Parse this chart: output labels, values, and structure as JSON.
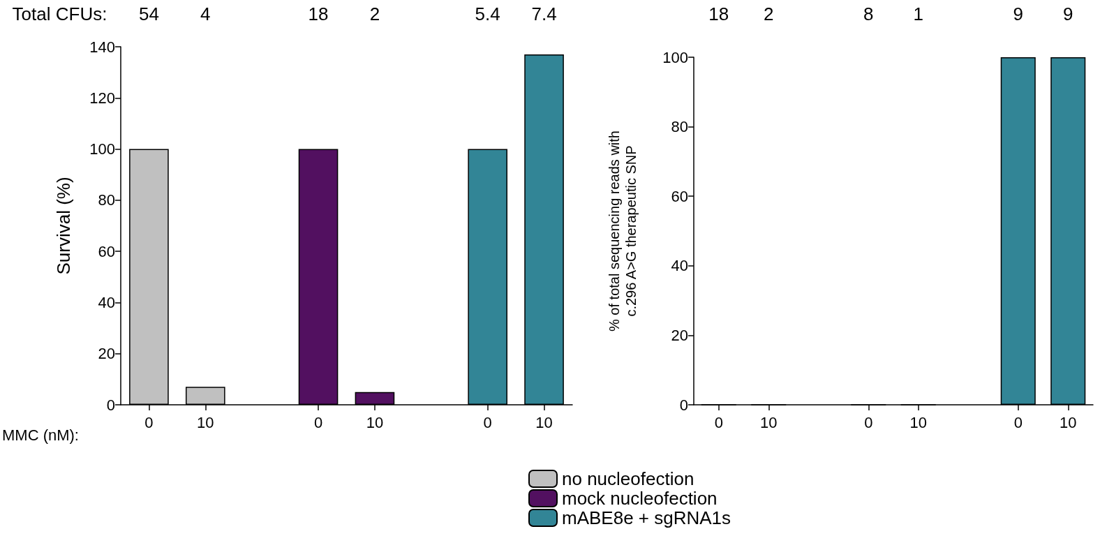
{
  "chart_data": [
    {
      "type": "bar",
      "ylabel": "Survival (%)",
      "xlabel": "MMC (nM):",
      "categories": [
        "0",
        "10",
        null,
        "0",
        "10",
        null,
        "0",
        "10"
      ],
      "series": [
        {
          "name": "no nucleofection",
          "color": "#c0c0c0",
          "values": [
            100,
            7,
            null,
            null,
            null,
            null,
            null,
            null
          ]
        },
        {
          "name": "mock nucleofection",
          "color": "#521060",
          "values": [
            null,
            null,
            null,
            100,
            5,
            null,
            null,
            null
          ]
        },
        {
          "name": "mABE8e + sgRNA1s",
          "color": "#328596",
          "values": [
            null,
            null,
            null,
            null,
            null,
            null,
            100,
            137
          ]
        }
      ],
      "ylim": [
        0,
        140
      ],
      "yticks": [
        0,
        20,
        40,
        60,
        80,
        100,
        120,
        140
      ],
      "grid": false,
      "legend": "bottom",
      "annotations": [
        "Total CFUs:",
        "54",
        "4",
        "18",
        "2",
        "5.4",
        "7.4"
      ]
    },
    {
      "type": "bar",
      "ylabel": "% of total sequencing reads with\nc.296 A>G therapeutic SNP",
      "categories": [
        "0",
        "10",
        null,
        "0",
        "10",
        null,
        "0",
        "10"
      ],
      "series": [
        {
          "color": "#c0c0c0",
          "values": [
            0,
            0,
            null,
            null,
            null,
            null,
            null,
            null
          ]
        },
        {
          "color": "#521060",
          "values": [
            null,
            null,
            null,
            0,
            0,
            null,
            null,
            null
          ]
        },
        {
          "color": "#328596",
          "values": [
            null,
            null,
            null,
            null,
            null,
            null,
            100,
            100
          ]
        }
      ],
      "ylim": [
        0,
        100
      ],
      "yticks": [
        0,
        20,
        40,
        60,
        80,
        100
      ],
      "grid": false,
      "legend": false,
      "annotations": [
        "18",
        "2",
        "8",
        "1",
        "9",
        "9"
      ]
    }
  ]
}
